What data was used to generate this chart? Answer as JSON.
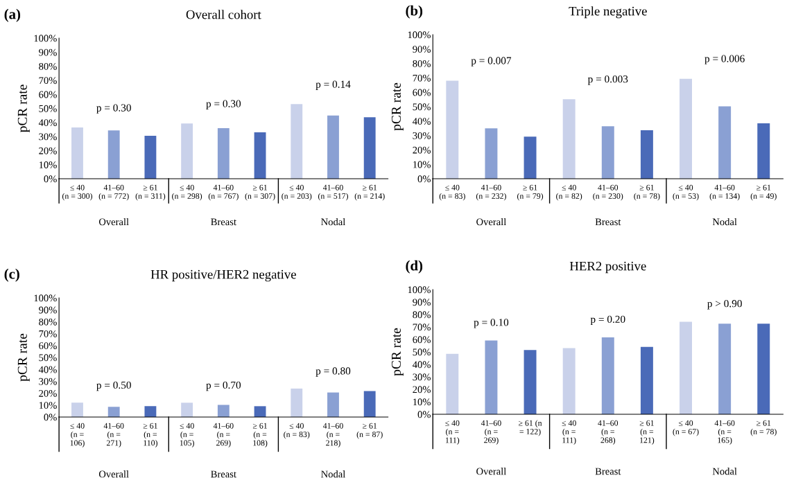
{
  "chart_data": [
    {
      "type": "bar",
      "title": "Overall cohort",
      "ylabel": "pCR rate",
      "categories": [
        "≤ 40\n(n = 300)",
        "41–60\n(n = 772)",
        "≥ 61\n(n = 311)",
        "≤ 40\n(n = 298)",
        "41–60\n(n = 767)",
        "≥ 61\n(n = 307)",
        "≤ 40\n(n = 203)",
        "41–60\n(n = 517)",
        "≥ 61\n(n = 214)"
      ],
      "values": [
        36.4,
        34.4,
        30.6,
        39.3,
        36.0,
        33.0,
        53.1,
        44.9,
        43.7
      ],
      "colors": [
        "#c9d1ea",
        "#8aa0d3",
        "#4a6ab8",
        "#c9d1ea",
        "#8aa0d3",
        "#4a6ab8",
        "#c9d1ea",
        "#8aa0d3",
        "#4a6ab8"
      ],
      "ylim": [
        0,
        100
      ],
      "yticks": [
        {
          "value": 0,
          "label": "0%"
        },
        {
          "value": 10,
          "label": "10%"
        },
        {
          "value": 20,
          "label": "20%"
        },
        {
          "value": 30,
          "label": "30%"
        },
        {
          "value": 40,
          "label": "40%"
        },
        {
          "value": 50,
          "label": "50%"
        },
        {
          "value": 60,
          "label": "60%"
        },
        {
          "value": 70,
          "label": "70%"
        },
        {
          "value": 80,
          "label": "80%"
        },
        {
          "value": 90,
          "label": "90%"
        },
        {
          "value": 100,
          "label": "100%"
        }
      ],
      "grid": false,
      "legend": false,
      "annotations": [
        "(a)",
        "p = 0.30",
        "p = 0.30",
        "p = 0.14",
        "Overall",
        "Breast",
        "Nodal"
      ]
    },
    {
      "type": "bar",
      "title": "Triple negative",
      "ylabel": "pCR rate",
      "categories": [
        "≤ 40\n(n = 83)",
        "41–60\n(n = 232)",
        "≥ 61\n(n = 79)",
        "≤ 40\n(n = 82)",
        "41–60\n(n = 230)",
        "≥ 61\n(n = 78)",
        "≤ 40\n(n = 53)",
        "41–60\n(n = 134)",
        "≥ 61\n(n = 49)"
      ],
      "values": [
        68.0,
        35.0,
        29.2,
        55.2,
        36.4,
        33.6,
        69.4,
        50.3,
        38.5
      ],
      "colors": [
        "#c9d1ea",
        "#8aa0d3",
        "#4a6ab8",
        "#c9d1ea",
        "#8aa0d3",
        "#4a6ab8",
        "#c9d1ea",
        "#8aa0d3",
        "#4a6ab8"
      ],
      "ylim": [
        0,
        100
      ],
      "yticks": [
        {
          "value": 0,
          "label": "0%"
        },
        {
          "value": 10,
          "label": "10%"
        },
        {
          "value": 20,
          "label": "20%"
        },
        {
          "value": 30,
          "label": "30%"
        },
        {
          "value": 40,
          "label": "40%"
        },
        {
          "value": 50,
          "label": "50%"
        },
        {
          "value": 60,
          "label": "60%"
        },
        {
          "value": 70,
          "label": "70%"
        },
        {
          "value": 80,
          "label": "80%"
        },
        {
          "value": 90,
          "label": "90%"
        },
        {
          "value": 100,
          "label": "100%"
        }
      ],
      "grid": false,
      "legend": false,
      "annotations": [
        "(b)",
        "p = 0.007",
        "p = 0.003",
        "p = 0.006",
        "Overall",
        "Breast",
        "Nodal"
      ]
    },
    {
      "type": "bar",
      "title": "HR positive/HER2 negative",
      "ylabel": "pCR rate",
      "categories": [
        "≤ 40\n(n =\n106)",
        "41–60\n(n =\n271)",
        "≥ 61\n(n =\n110)",
        "≤ 40\n(n =\n105)",
        "41–60\n(n =\n269)",
        "≥ 61\n(n =\n108)",
        "≤ 40\n(n = 83)",
        "41–60\n(n =\n218)",
        "≥ 61\n(n = 87)"
      ],
      "values": [
        12.0,
        8.6,
        9.1,
        12.0,
        10.2,
        9.1,
        23.9,
        20.6,
        21.8
      ],
      "colors": [
        "#c9d1ea",
        "#8aa0d3",
        "#4a6ab8",
        "#c9d1ea",
        "#8aa0d3",
        "#4a6ab8",
        "#c9d1ea",
        "#8aa0d3",
        "#4a6ab8"
      ],
      "ylim": [
        0,
        100
      ],
      "yticks": [
        {
          "value": 0,
          "label": "0%"
        },
        {
          "value": 10,
          "label": "10%"
        },
        {
          "value": 20,
          "label": "20%"
        },
        {
          "value": 30,
          "label": "30%"
        },
        {
          "value": 40,
          "label": "40%"
        },
        {
          "value": 50,
          "label": "50%"
        },
        {
          "value": 60,
          "label": "60%"
        },
        {
          "value": 70,
          "label": "70%"
        },
        {
          "value": 80,
          "label": "80%"
        },
        {
          "value": 90,
          "label": "90%"
        },
        {
          "value": 100,
          "label": "100%"
        }
      ],
      "grid": false,
      "legend": false,
      "annotations": [
        "(c)",
        "p = 0.50",
        "p = 0.70",
        "p = 0.80",
        "Overall",
        "Breast",
        "Nodal"
      ]
    },
    {
      "type": "bar",
      "title": "HER2 positive",
      "ylabel": "pCR rate",
      "categories": [
        "≤ 40\n(n =\n111)",
        "41–60\n(n =\n269)",
        "≥ 61 (n\n= 122)",
        "≤ 40\n(n =\n111)",
        "41–60\n(n =\n268)",
        "≥ 61\n(n =\n121)",
        "≤ 40\n(n = 67)",
        "41–60\n(n =\n165)",
        "≥ 61\n(n = 78)"
      ],
      "values": [
        48.5,
        59.1,
        51.5,
        53.1,
        61.6,
        54.0,
        74.2,
        72.7,
        72.7
      ],
      "colors": [
        "#c9d1ea",
        "#8aa0d3",
        "#4a6ab8",
        "#c9d1ea",
        "#8aa0d3",
        "#4a6ab8",
        "#c9d1ea",
        "#8aa0d3",
        "#4a6ab8"
      ],
      "ylim": [
        0,
        100
      ],
      "yticks": [
        {
          "value": 0,
          "label": "0%"
        },
        {
          "value": 10,
          "label": "10%"
        },
        {
          "value": 20,
          "label": "20%"
        },
        {
          "value": 30,
          "label": "30%"
        },
        {
          "value": 40,
          "label": "40%"
        },
        {
          "value": 50,
          "label": "50%"
        },
        {
          "value": 60,
          "label": "60%"
        },
        {
          "value": 70,
          "label": "70%"
        },
        {
          "value": 80,
          "label": "80%"
        },
        {
          "value": 90,
          "label": "90%"
        },
        {
          "value": 100,
          "label": "100%"
        }
      ],
      "grid": false,
      "legend": false,
      "annotations": [
        "(d)",
        "p = 0.10",
        "p = 0.20",
        "p > 0.90",
        "Overall",
        "Breast",
        "Nodal"
      ]
    }
  ]
}
